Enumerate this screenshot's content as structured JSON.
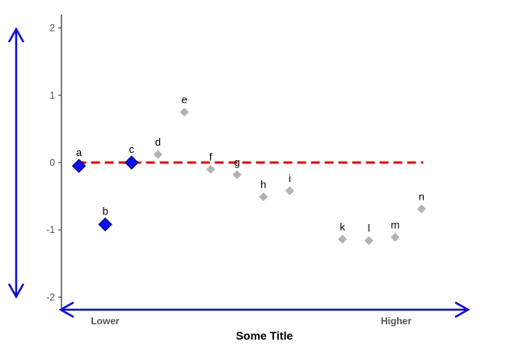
{
  "chart_data": {
    "type": "scatter",
    "title": "",
    "xlabel": "Some Title",
    "ylabel": "",
    "xlim": [
      0.5,
      14.6
    ],
    "ylim": [
      -2.05,
      2.2
    ],
    "yticks": [
      -2,
      -1,
      0,
      1,
      2
    ],
    "x_annotations": {
      "left": "Lower",
      "right": "Higher"
    },
    "reference_line": {
      "y": 0,
      "x_range": [
        1,
        14
      ],
      "style": "dashed",
      "color": "#dd1111"
    },
    "grid": false,
    "legend": "none",
    "colors": {
      "highlight": "#1010ee",
      "normal": "#b3b3b3",
      "arrows": "#1010cc",
      "axis": "#000000"
    },
    "points": [
      {
        "label": "a",
        "x": 1,
        "y": -0.05,
        "highlight": true
      },
      {
        "label": "b",
        "x": 2,
        "y": -0.92,
        "highlight": true
      },
      {
        "label": "c",
        "x": 3,
        "y": 0.0,
        "highlight": true
      },
      {
        "label": "d",
        "x": 4,
        "y": 0.12,
        "highlight": false
      },
      {
        "label": "e",
        "x": 5,
        "y": 0.75,
        "highlight": false
      },
      {
        "label": "f",
        "x": 6,
        "y": -0.1,
        "highlight": false
      },
      {
        "label": "g",
        "x": 7,
        "y": -0.18,
        "highlight": false
      },
      {
        "label": "h",
        "x": 8,
        "y": -0.51,
        "highlight": false
      },
      {
        "label": "i",
        "x": 9,
        "y": -0.42,
        "highlight": false
      },
      {
        "label": "k",
        "x": 11,
        "y": -1.14,
        "highlight": false
      },
      {
        "label": "l",
        "x": 12,
        "y": -1.16,
        "highlight": false
      },
      {
        "label": "m",
        "x": 13,
        "y": -1.11,
        "highlight": false
      },
      {
        "label": "n",
        "x": 14,
        "y": -0.69,
        "highlight": false
      }
    ]
  }
}
